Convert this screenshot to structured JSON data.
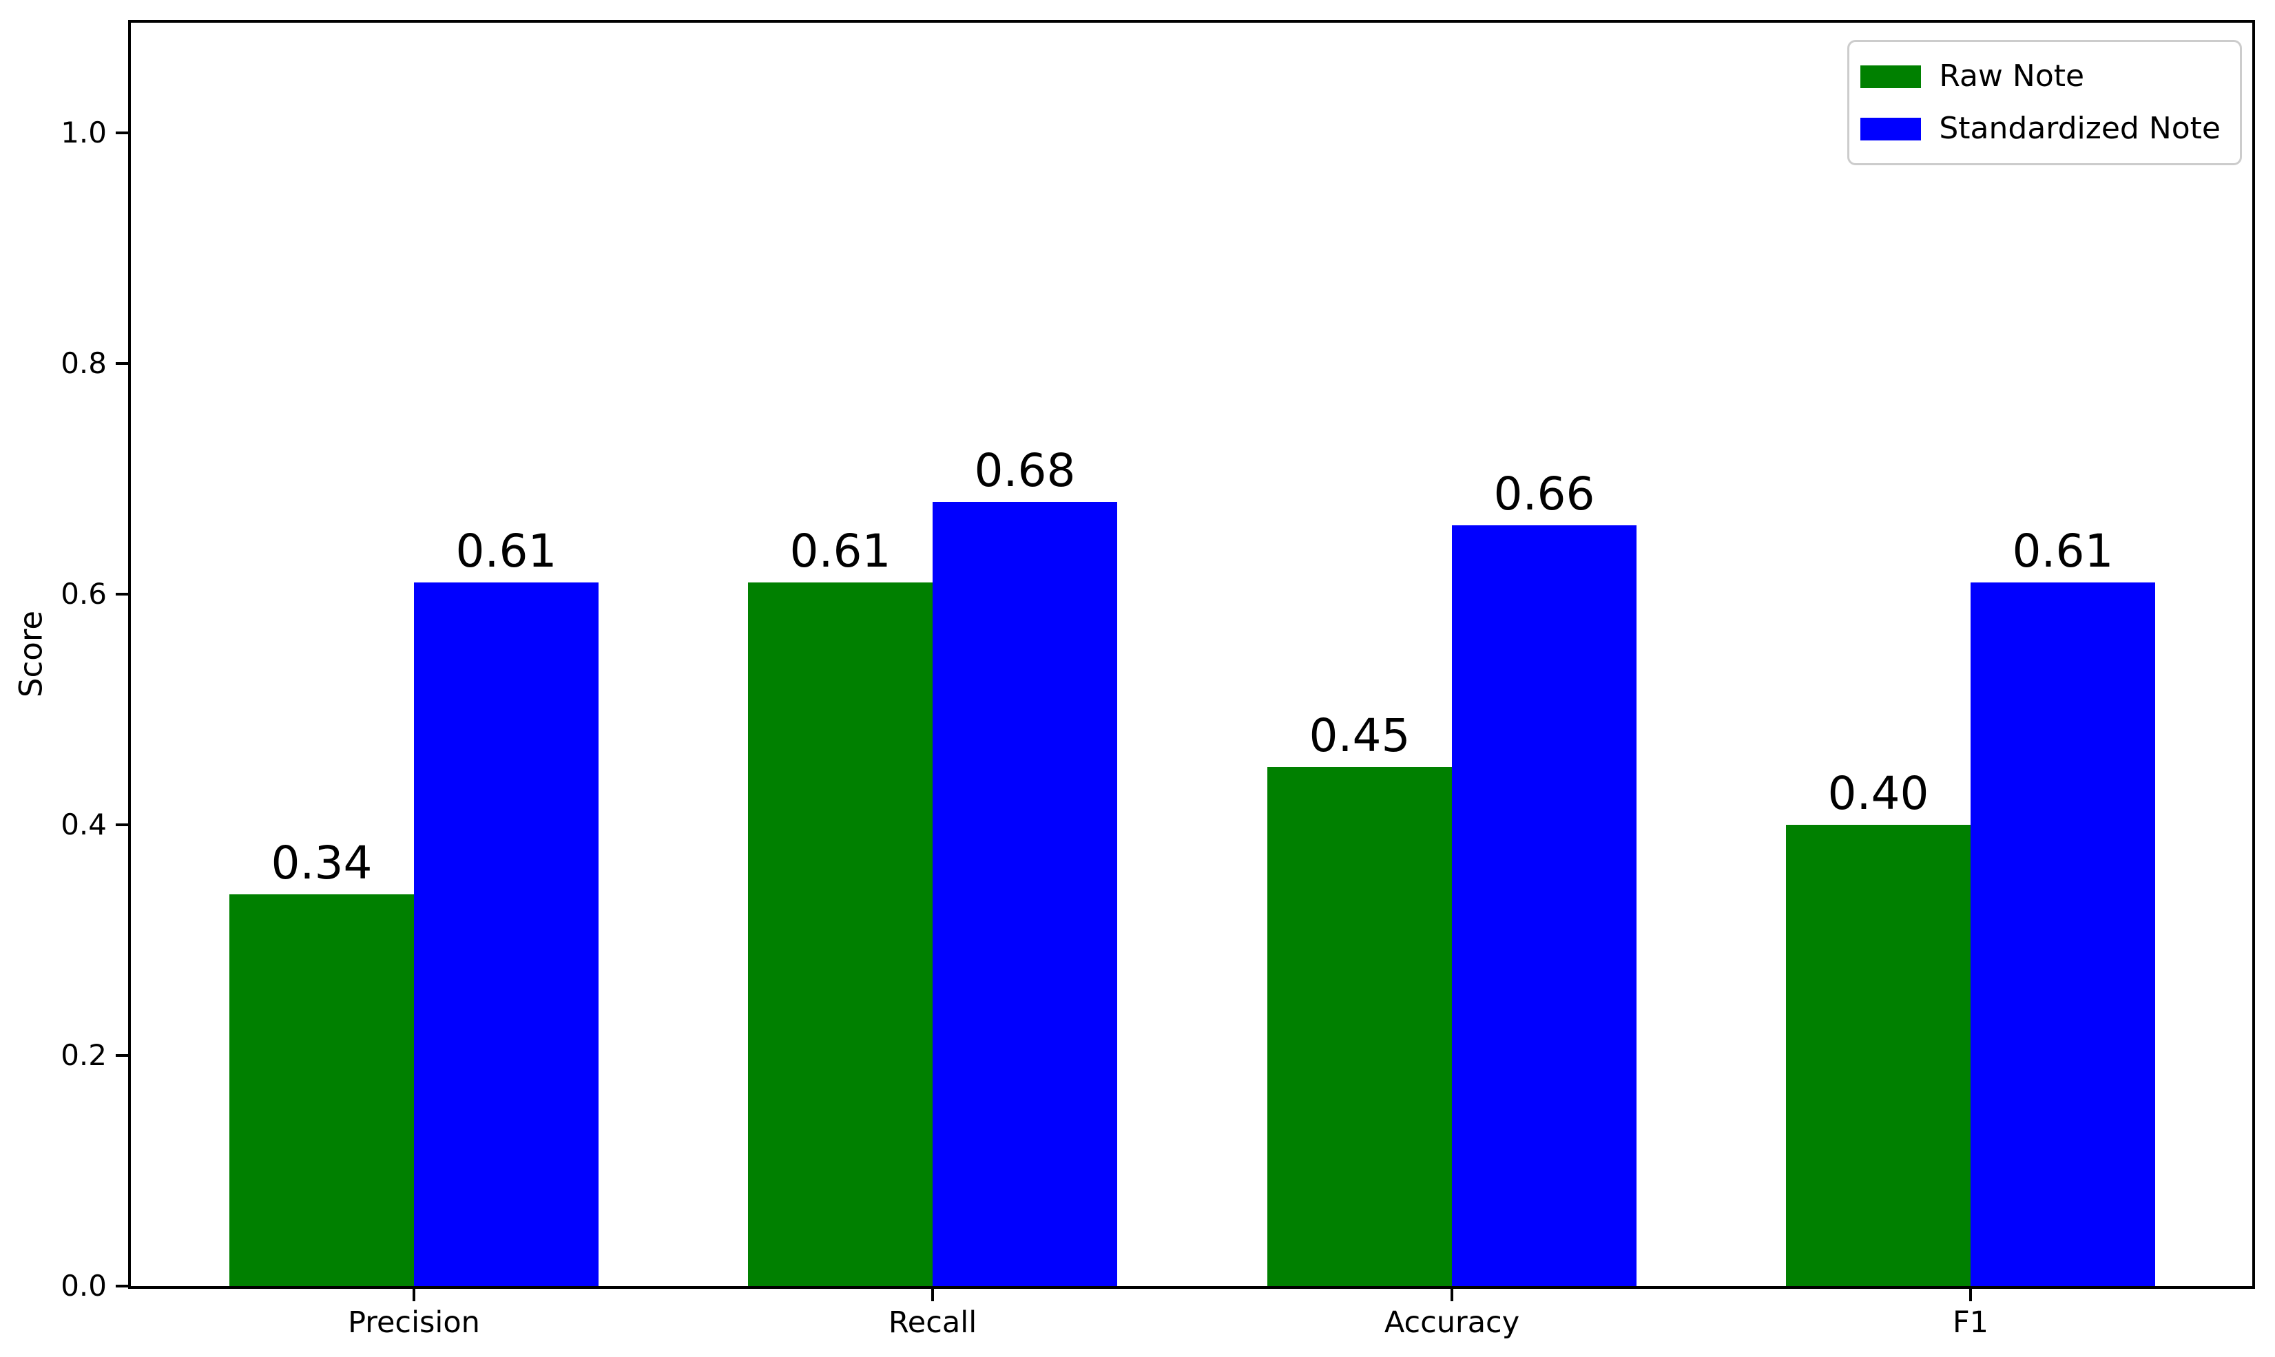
{
  "chart_data": {
    "type": "bar",
    "title": "",
    "ylabel": "Score",
    "xlabel": "",
    "categories": [
      "Precision",
      "Recall",
      "Accuracy",
      "F1"
    ],
    "series": [
      {
        "name": "Raw Note",
        "color": "#008000",
        "values": [
          0.34,
          0.61,
          0.45,
          0.4
        ]
      },
      {
        "name": "Standardized Note",
        "color": "#0000ff",
        "values": [
          0.61,
          0.68,
          0.66,
          0.61
        ]
      }
    ],
    "bar_value_labels": [
      [
        "0.34",
        "0.61",
        "0.45",
        "0.40"
      ],
      [
        "0.61",
        "0.68",
        "0.66",
        "0.61"
      ]
    ],
    "y_ticks": [
      "0.0",
      "0.2",
      "0.4",
      "0.6",
      "0.8",
      "1.0"
    ],
    "ylim": [
      0,
      1.1
    ],
    "grid": false,
    "legend_position": "upper right",
    "axis_color": "#000000",
    "legend_border_color": "#cccccc"
  }
}
